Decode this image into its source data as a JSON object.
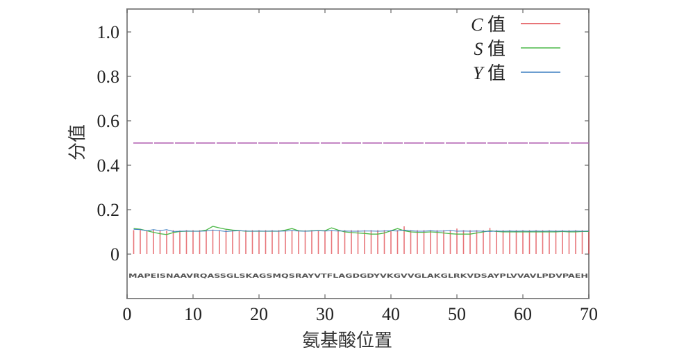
{
  "chart_data": {
    "type": "bar+line",
    "title": "",
    "xlabel": "氨基酸位置",
    "ylabel": "分值",
    "xlim": [
      0,
      70
    ],
    "ylim": [
      -0.2,
      1.1
    ],
    "x_ticks": [
      "0",
      "10",
      "20",
      "30",
      "40",
      "50",
      "60",
      "70"
    ],
    "y_ticks": [
      "0",
      "0.2",
      "0.4",
      "0.6",
      "0.8",
      "1.0"
    ],
    "grid": false,
    "legend_position": "top-right",
    "legend": [
      {
        "label_var": "C",
        "label_suffix": "值",
        "color": "#e0474c"
      },
      {
        "label_var": "S",
        "label_suffix": "值",
        "color": "#4cb848"
      },
      {
        "label_var": "Y",
        "label_suffix": "值",
        "color": "#3c7fc1"
      }
    ],
    "threshold": {
      "value": 0.5,
      "color": "#b15fb1",
      "style": "dashed"
    },
    "sequence": "MAPEISNAAVRQASSGLSKAGSMQSRAYVTFLAGDGDYVKGVVGLAKGLRKVDSAYPLVVAVLPDVPAEH",
    "x": [
      1,
      2,
      3,
      4,
      5,
      6,
      7,
      8,
      9,
      10,
      11,
      12,
      13,
      14,
      15,
      16,
      17,
      18,
      19,
      20,
      21,
      22,
      23,
      24,
      25,
      26,
      27,
      28,
      29,
      30,
      31,
      32,
      33,
      34,
      35,
      36,
      37,
      38,
      39,
      40,
      41,
      42,
      43,
      44,
      45,
      46,
      47,
      48,
      49,
      50,
      51,
      52,
      53,
      54,
      55,
      56,
      57,
      58,
      59,
      60,
      61,
      62,
      63,
      64,
      65,
      66,
      67,
      68,
      69,
      70
    ],
    "series": [
      {
        "name": "C值",
        "type": "bar",
        "color": "#e0474c",
        "values": [
          0.108,
          0.108,
          0.105,
          0.11,
          0.108,
          0.105,
          0.108,
          0.106,
          0.108,
          0.108,
          0.108,
          0.108,
          0.11,
          0.108,
          0.108,
          0.108,
          0.108,
          0.108,
          0.108,
          0.108,
          0.108,
          0.108,
          0.108,
          0.108,
          0.108,
          0.108,
          0.108,
          0.108,
          0.108,
          0.108,
          0.108,
          0.108,
          0.108,
          0.108,
          0.108,
          0.108,
          0.108,
          0.108,
          0.108,
          0.108,
          0.108,
          0.125,
          0.108,
          0.108,
          0.108,
          0.108,
          0.108,
          0.108,
          0.108,
          0.115,
          0.108,
          0.108,
          0.108,
          0.108,
          0.118,
          0.108,
          0.108,
          0.108,
          0.108,
          0.108,
          0.108,
          0.108,
          0.108,
          0.108,
          0.108,
          0.108,
          0.108,
          0.108,
          0.108,
          0.108
        ]
      },
      {
        "name": "S值",
        "type": "line",
        "color": "#4cb848",
        "values": [
          0.115,
          0.112,
          0.105,
          0.098,
          0.092,
          0.088,
          0.097,
          0.102,
          0.103,
          0.103,
          0.103,
          0.108,
          0.125,
          0.118,
          0.112,
          0.108,
          0.106,
          0.103,
          0.103,
          0.103,
          0.103,
          0.103,
          0.103,
          0.108,
          0.115,
          0.105,
          0.103,
          0.105,
          0.106,
          0.105,
          0.118,
          0.108,
          0.1,
          0.097,
          0.095,
          0.093,
          0.09,
          0.09,
          0.095,
          0.105,
          0.115,
          0.105,
          0.1,
          0.098,
          0.098,
          0.1,
          0.098,
          0.095,
          0.092,
          0.09,
          0.09,
          0.09,
          0.095,
          0.1,
          0.105,
          0.102,
          0.1,
          0.1,
          0.1,
          0.1,
          0.1,
          0.1,
          0.1,
          0.1,
          0.1,
          0.102,
          0.1,
          0.1,
          0.102,
          0.102
        ]
      },
      {
        "name": "Y值",
        "type": "line",
        "color": "#3c7fc1",
        "values": [
          0.112,
          0.11,
          0.105,
          0.11,
          0.106,
          0.11,
          0.102,
          0.103,
          0.104,
          0.103,
          0.103,
          0.104,
          0.108,
          0.105,
          0.102,
          0.104,
          0.105,
          0.104,
          0.103,
          0.104,
          0.103,
          0.104,
          0.103,
          0.104,
          0.105,
          0.104,
          0.103,
          0.104,
          0.105,
          0.104,
          0.105,
          0.104,
          0.104,
          0.103,
          0.103,
          0.104,
          0.104,
          0.103,
          0.104,
          0.105,
          0.104,
          0.108,
          0.105,
          0.103,
          0.103,
          0.105,
          0.103,
          0.104,
          0.106,
          0.103,
          0.104,
          0.103,
          0.104,
          0.103,
          0.102,
          0.104,
          0.103,
          0.104,
          0.103,
          0.104,
          0.103,
          0.104,
          0.103,
          0.104,
          0.103,
          0.104,
          0.103,
          0.104,
          0.103,
          0.104
        ]
      }
    ]
  }
}
